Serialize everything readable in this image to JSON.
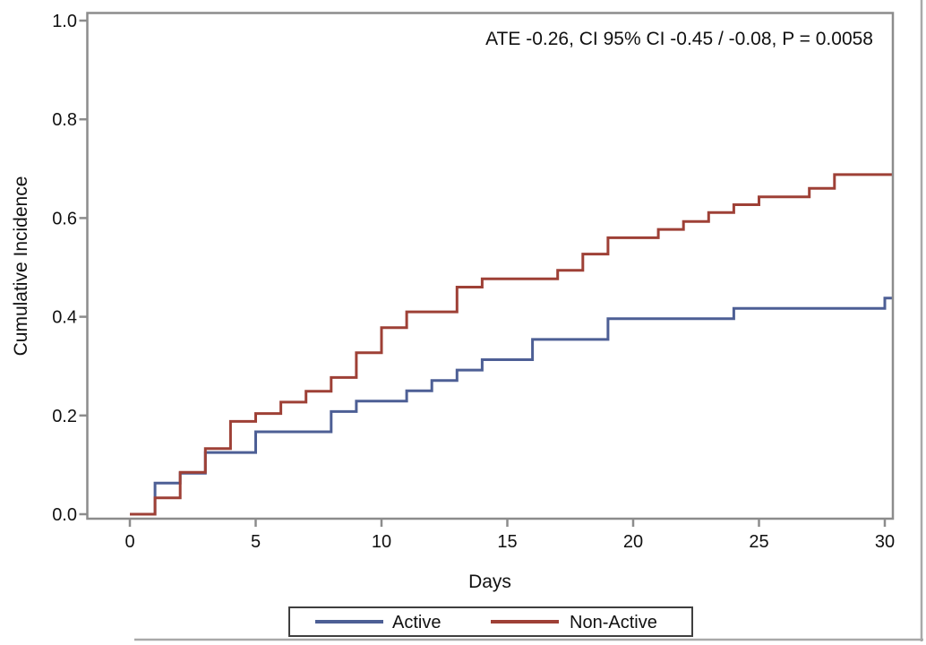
{
  "chart_data": {
    "type": "line",
    "subtype": "step",
    "title": "",
    "annotation": "ATE -0.26, CI 95% CI -0.45 / -0.08, P = 0.0058",
    "xlabel": "Days",
    "ylabel": "Cumulative Incidence",
    "xlim": [
      0,
      30
    ],
    "ylim": [
      0.0,
      1.0
    ],
    "xticks": [
      "0",
      "5",
      "10",
      "15",
      "20",
      "25",
      "30"
    ],
    "xtick_values": [
      0,
      5,
      10,
      15,
      20,
      25,
      30
    ],
    "yticks": [
      "0.0",
      "0.2",
      "0.4",
      "0.6",
      "0.8",
      "1.0"
    ],
    "ytick_values": [
      0.0,
      0.2,
      0.4,
      0.6,
      0.8,
      1.0
    ],
    "grid": false,
    "legend_position": "bottom",
    "frame_color": "#8c8c8c",
    "text_color": "#111111",
    "series": [
      {
        "name": "Active",
        "color": "#4d5f95",
        "steps": [
          [
            0,
            0
          ],
          [
            1,
            0.063
          ],
          [
            2,
            0.083
          ],
          [
            3,
            0.125
          ],
          [
            5,
            0.167
          ],
          [
            8,
            0.208
          ],
          [
            9,
            0.229
          ],
          [
            11,
            0.25
          ],
          [
            12,
            0.271
          ],
          [
            13,
            0.292
          ],
          [
            14,
            0.313
          ],
          [
            16,
            0.354
          ],
          [
            19,
            0.396
          ],
          [
            24,
            0.417
          ],
          [
            30,
            0.438
          ]
        ]
      },
      {
        "name": "Non-Active",
        "color": "#9e4036",
        "steps": [
          [
            0,
            0
          ],
          [
            1,
            0.033
          ],
          [
            2,
            0.085
          ],
          [
            3,
            0.133
          ],
          [
            4,
            0.188
          ],
          [
            5,
            0.204
          ],
          [
            6,
            0.227
          ],
          [
            7,
            0.249
          ],
          [
            8,
            0.277
          ],
          [
            9,
            0.327
          ],
          [
            10,
            0.378
          ],
          [
            11,
            0.41
          ],
          [
            13,
            0.46
          ],
          [
            14,
            0.477
          ],
          [
            17,
            0.494
          ],
          [
            18,
            0.527
          ],
          [
            19,
            0.56
          ],
          [
            21,
            0.577
          ],
          [
            22,
            0.593
          ],
          [
            23,
            0.611
          ],
          [
            24,
            0.627
          ],
          [
            25,
            0.643
          ],
          [
            27,
            0.66
          ],
          [
            28,
            0.688
          ]
        ]
      }
    ]
  }
}
